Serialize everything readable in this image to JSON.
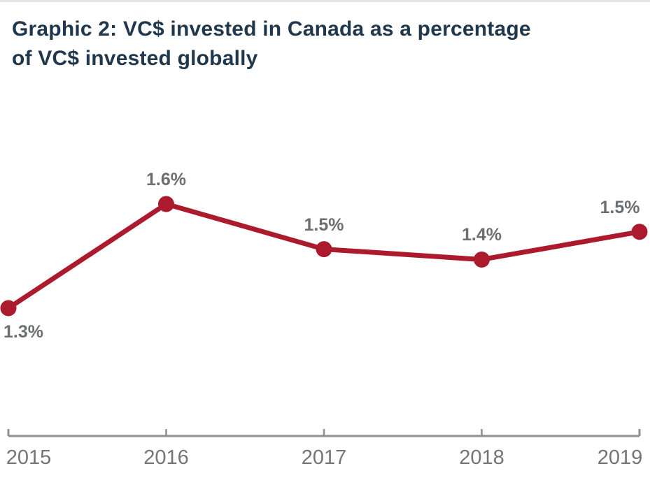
{
  "header": {
    "title_line1": "Graphic 2: VC$ invested in Canada as a percentage",
    "title_line2": "of VC$ invested globally"
  },
  "chart_data": {
    "type": "line",
    "title": "Graphic 2: VC$ invested in Canada as a percentage of VC$ invested globally",
    "categories": [
      "2015",
      "2016",
      "2017",
      "2018",
      "2019"
    ],
    "series": [
      {
        "name": "VC$ invested in Canada as percentage of VC$ invested globally",
        "values": [
          1.3,
          1.6,
          1.5,
          1.4,
          1.5
        ],
        "plot_values": [
          1.3,
          1.6,
          1.47,
          1.44,
          1.52
        ],
        "point_labels": [
          "1.3%",
          "1.6%",
          "1.5%",
          "1.4%",
          "1.5%"
        ]
      }
    ],
    "xlabel": "",
    "ylabel": "",
    "grid": "off",
    "legend": "none",
    "axis_ticks_visible": true,
    "colors": {
      "line": "#ab1a2d",
      "marker": "#ab1a2d",
      "point_label": "#6d6e71",
      "axis_line": "#8f8f8f",
      "tick_label": "#757575",
      "title": "#20374c"
    }
  }
}
